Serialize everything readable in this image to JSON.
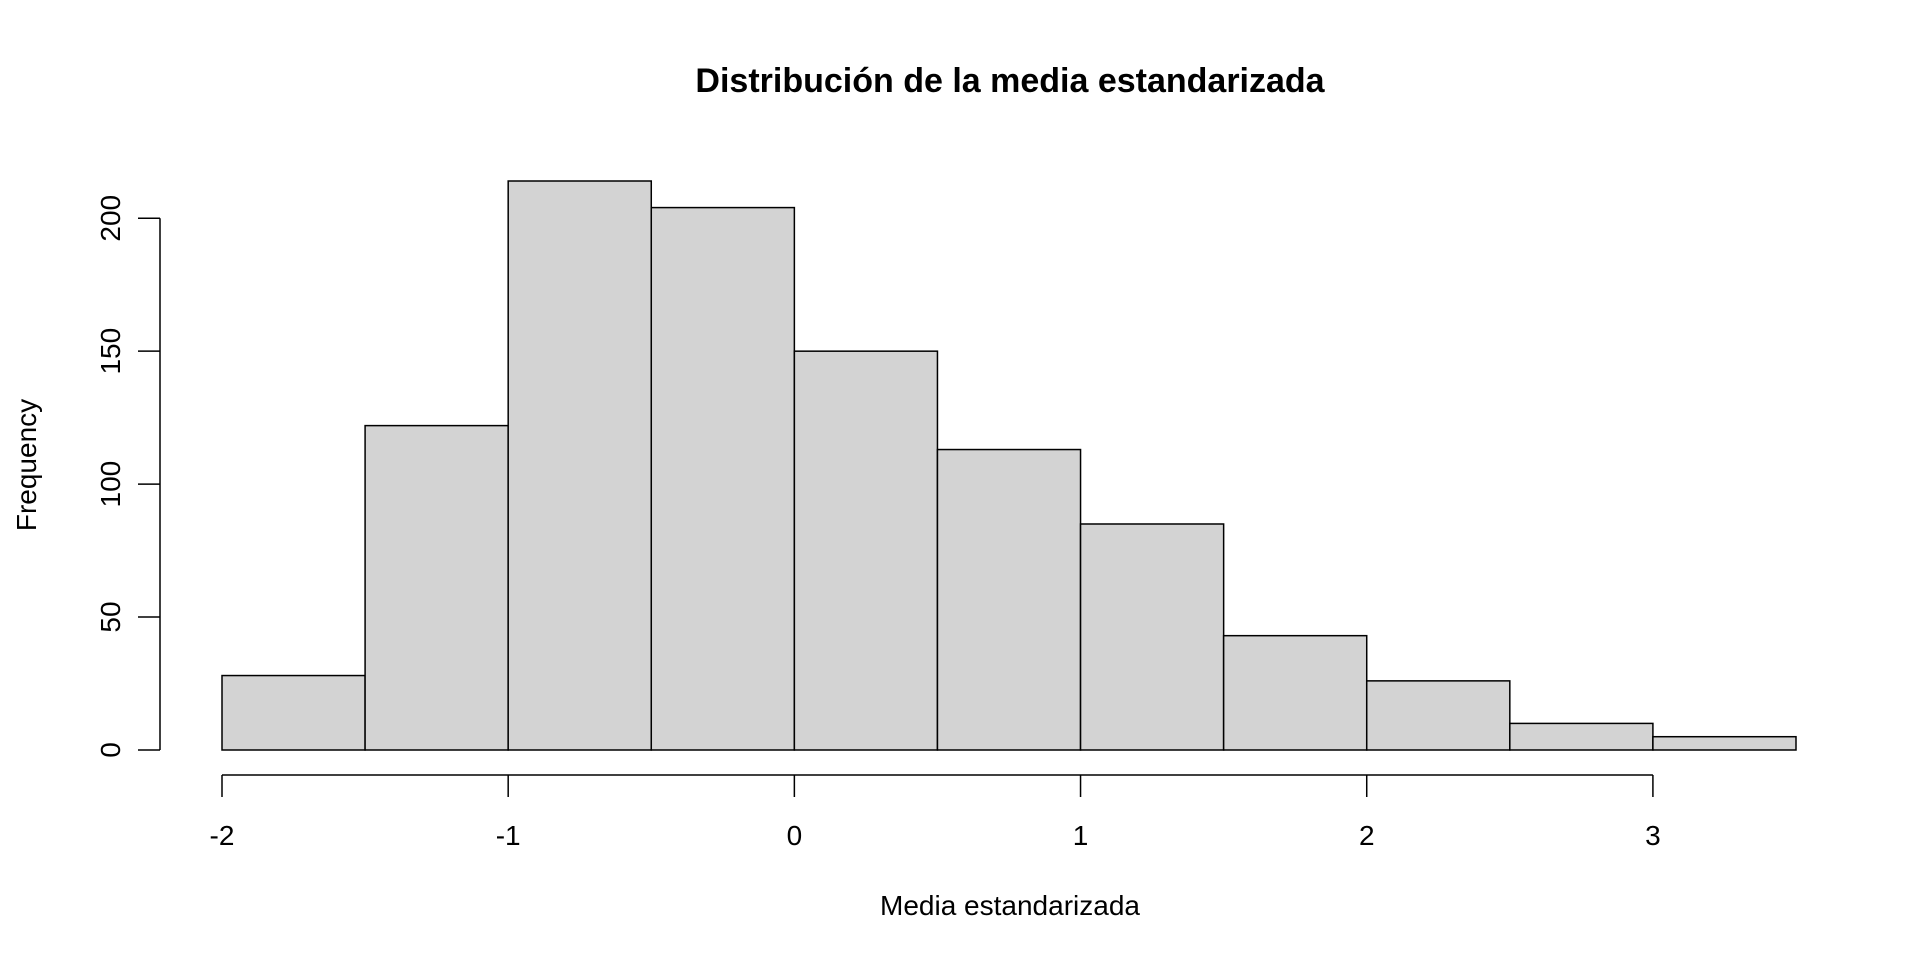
{
  "chart_data": {
    "type": "bar",
    "title": "Distribución de la media estandarizada",
    "xlabel": "Media estandarizada",
    "ylabel": "Frequency",
    "bin_edges": [
      -2,
      -1.5,
      -1,
      -0.5,
      0,
      0.5,
      1,
      1.5,
      2,
      2.5,
      3,
      3.5
    ],
    "values": [
      28,
      122,
      214,
      204,
      150,
      113,
      85,
      43,
      26,
      10,
      5
    ],
    "xlim": [
      -2,
      3.5
    ],
    "ylim": [
      0,
      214
    ],
    "x_ticks": [
      -2,
      -1,
      0,
      1,
      2,
      3
    ],
    "x_tick_labels": [
      "-2",
      "-1",
      "0",
      "1",
      "2",
      "3"
    ],
    "y_ticks": [
      0,
      50,
      100,
      150,
      200
    ],
    "y_tick_labels": [
      "0",
      "50",
      "100",
      "150",
      "200"
    ],
    "grid": false,
    "legend": "none",
    "colors": {
      "bar_fill": "#d3d3d3",
      "bar_stroke": "#000000",
      "background": "#ffffff"
    }
  }
}
